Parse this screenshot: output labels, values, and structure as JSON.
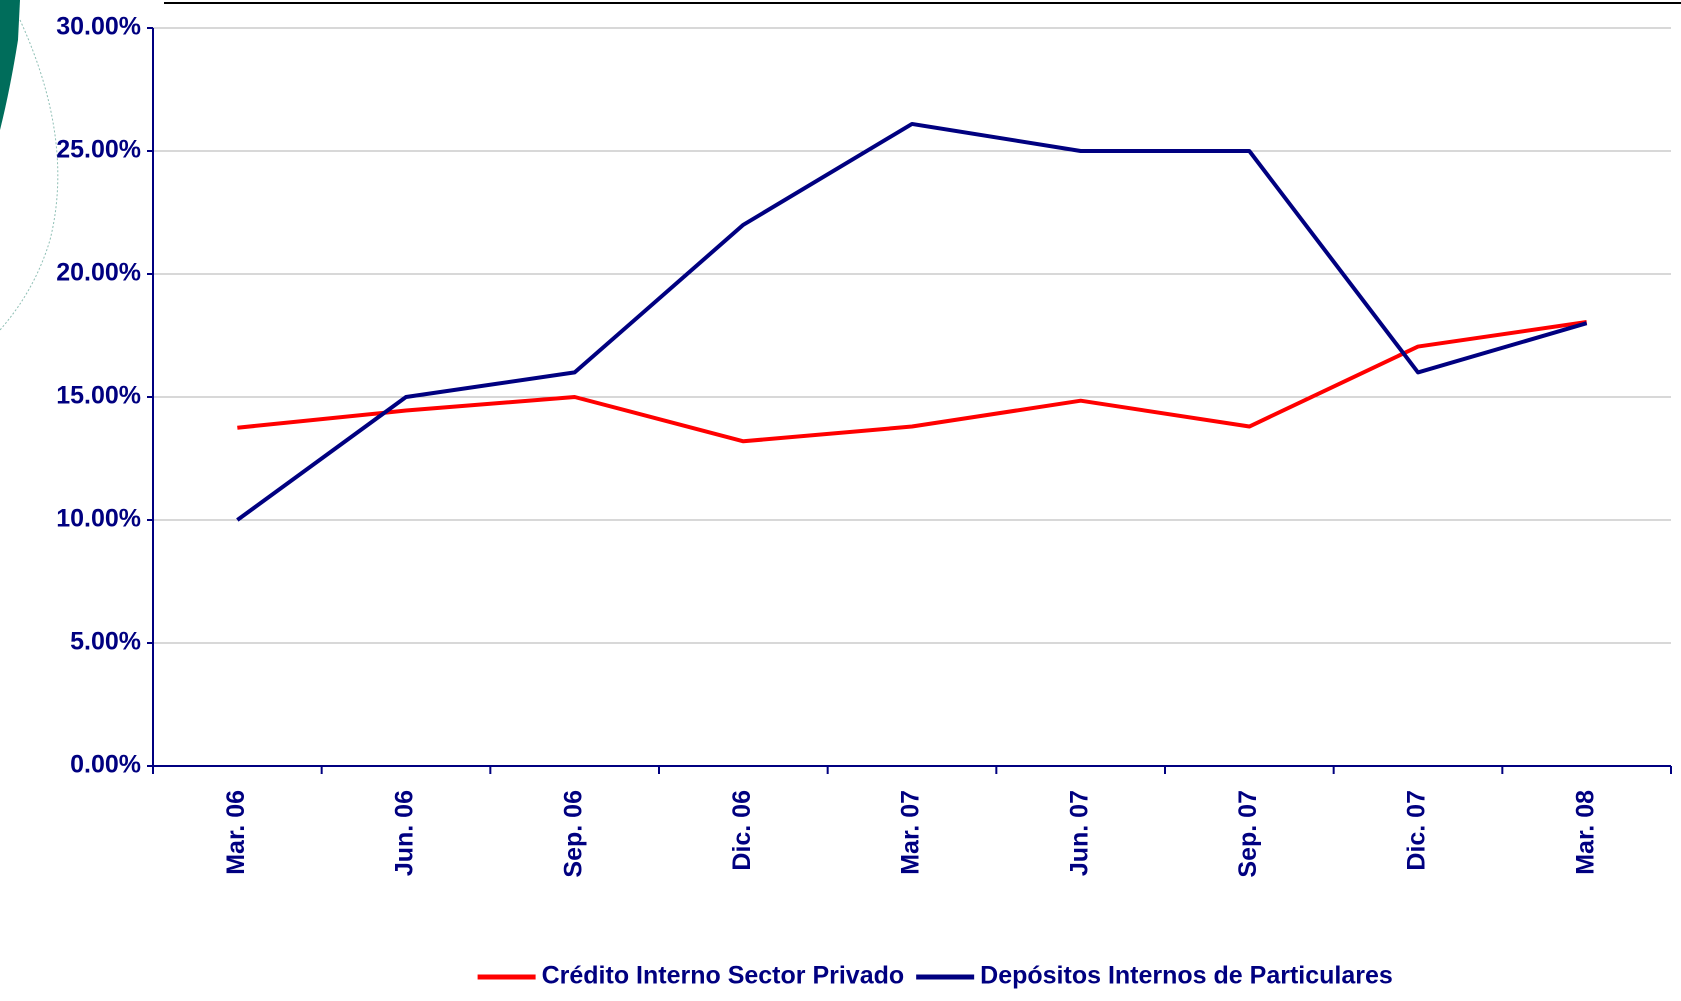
{
  "chart_data": {
    "type": "line",
    "categories": [
      "Mar. 06",
      "Jun. 06",
      "Sep. 06",
      "Dic. 06",
      "Mar. 07",
      "Jun. 07",
      "Sep. 07",
      "Dic. 07",
      "Mar. 08"
    ],
    "series": [
      {
        "name": "Crédito Interno Sector Privado",
        "color": "#ff0000",
        "values": [
          13.75,
          14.45,
          15.0,
          13.2,
          13.8,
          14.85,
          13.8,
          17.05,
          18.05
        ]
      },
      {
        "name": "Depósitos Internos de Particulares",
        "color": "#000080",
        "values": [
          10.0,
          15.0,
          16.0,
          22.0,
          26.1,
          25.0,
          25.0,
          16.0,
          18.0
        ]
      }
    ],
    "ylim": [
      0,
      30
    ],
    "yticks": [
      {
        "value": 0,
        "label": "0.00%"
      },
      {
        "value": 5,
        "label": "5.00%"
      },
      {
        "value": 10,
        "label": "10.00%"
      },
      {
        "value": 15,
        "label": "15.00%"
      },
      {
        "value": 20,
        "label": "20.00%"
      },
      {
        "value": 25,
        "label": "25.00%"
      },
      {
        "value": 30,
        "label": "30.00%"
      }
    ],
    "grid": true,
    "legend": "bottom"
  }
}
